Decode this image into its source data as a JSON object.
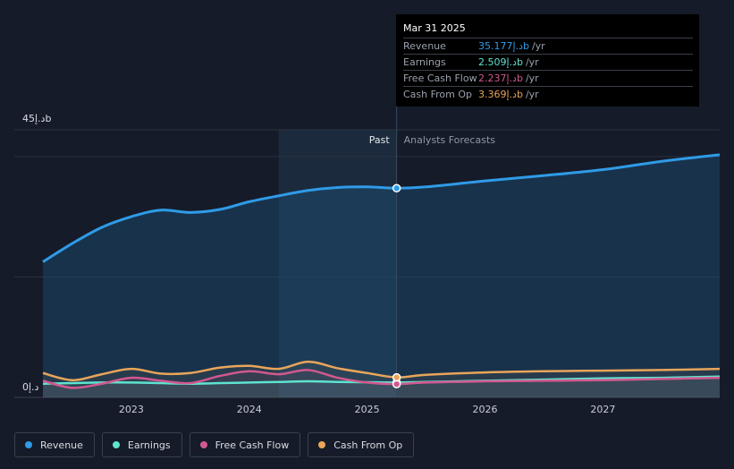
{
  "tooltip": {
    "date": "Mar 31 2025",
    "rows": [
      {
        "label": "Revenue",
        "value": "35.177د.إb",
        "unit": "/yr",
        "color": "#2f9be7"
      },
      {
        "label": "Earnings",
        "value": "2.509د.إb",
        "unit": "/yr",
        "color": "#5ee3d0"
      },
      {
        "label": "Free Cash Flow",
        "value": "2.237د.إb",
        "unit": "/yr",
        "color": "#d2588f"
      },
      {
        "label": "Cash From Op",
        "value": "3.369د.إb",
        "unit": "/yr",
        "color": "#e8a55a"
      }
    ]
  },
  "legend": [
    {
      "label": "Revenue",
      "color": "#2f9be7",
      "icon": "revenue-dot"
    },
    {
      "label": "Earnings",
      "color": "#5ee3d0",
      "icon": "earnings-dot"
    },
    {
      "label": "Free Cash Flow",
      "color": "#d2588f",
      "icon": "fcf-dot"
    },
    {
      "label": "Cash From Op",
      "color": "#e8a55a",
      "icon": "cfo-dot"
    }
  ],
  "chart_data": {
    "type": "line",
    "y_top_label": "45د.إb",
    "y_bottom_label": "0د.إ",
    "ylim": [
      0,
      45
    ],
    "xlim": [
      2022.25,
      2027.99
    ],
    "x_ticks": [
      "2023",
      "2024",
      "2025",
      "2026",
      "2027"
    ],
    "x_tick_values": [
      2023,
      2024,
      2025,
      2026,
      2027
    ],
    "past_label": "Past",
    "forecast_label": "Analysts Forecasts",
    "divider_x": 2025.25,
    "highlight_start_x": 2024.25,
    "series": [
      {
        "name": "Revenue",
        "color": "#2f9be7",
        "area": true,
        "points": [
          [
            2022.25,
            22.8
          ],
          [
            2022.5,
            25.9
          ],
          [
            2022.75,
            28.6
          ],
          [
            2023.0,
            30.4
          ],
          [
            2023.25,
            31.5
          ],
          [
            2023.5,
            31.1
          ],
          [
            2023.75,
            31.6
          ],
          [
            2024.0,
            32.9
          ],
          [
            2024.25,
            33.9
          ],
          [
            2024.5,
            34.8
          ],
          [
            2024.75,
            35.3
          ],
          [
            2025.0,
            35.4
          ],
          [
            2025.25,
            35.177
          ],
          [
            2025.5,
            35.4
          ],
          [
            2026.0,
            36.4
          ],
          [
            2026.5,
            37.3
          ],
          [
            2027.0,
            38.3
          ],
          [
            2027.5,
            39.7
          ],
          [
            2027.99,
            40.8
          ]
        ]
      },
      {
        "name": "Earnings",
        "color": "#5ee3d0",
        "area": false,
        "points": [
          [
            2022.25,
            2.3
          ],
          [
            2022.5,
            2.4
          ],
          [
            2022.75,
            2.5
          ],
          [
            2023.0,
            2.5
          ],
          [
            2023.25,
            2.4
          ],
          [
            2023.5,
            2.3
          ],
          [
            2023.75,
            2.4
          ],
          [
            2024.0,
            2.5
          ],
          [
            2024.25,
            2.6
          ],
          [
            2024.5,
            2.7
          ],
          [
            2024.75,
            2.6
          ],
          [
            2025.0,
            2.55
          ],
          [
            2025.25,
            2.509
          ],
          [
            2025.5,
            2.6
          ],
          [
            2026.0,
            2.8
          ],
          [
            2026.5,
            3.0
          ],
          [
            2027.0,
            3.2
          ],
          [
            2027.5,
            3.3
          ],
          [
            2027.99,
            3.5
          ]
        ]
      },
      {
        "name": "Free Cash Flow",
        "color": "#d2588f",
        "area": false,
        "points": [
          [
            2022.25,
            2.8
          ],
          [
            2022.5,
            1.6
          ],
          [
            2022.75,
            2.3
          ],
          [
            2023.0,
            3.3
          ],
          [
            2023.25,
            2.8
          ],
          [
            2023.5,
            2.4
          ],
          [
            2023.75,
            3.6
          ],
          [
            2024.0,
            4.4
          ],
          [
            2024.25,
            3.9
          ],
          [
            2024.5,
            4.6
          ],
          [
            2024.75,
            3.3
          ],
          [
            2025.0,
            2.5
          ],
          [
            2025.25,
            2.237
          ],
          [
            2025.5,
            2.5
          ],
          [
            2026.0,
            2.7
          ],
          [
            2026.5,
            2.8
          ],
          [
            2027.0,
            2.9
          ],
          [
            2027.5,
            3.1
          ],
          [
            2027.99,
            3.3
          ]
        ]
      },
      {
        "name": "Cash From Op",
        "color": "#e8a55a",
        "area": false,
        "points": [
          [
            2022.25,
            4.1
          ],
          [
            2022.5,
            2.9
          ],
          [
            2022.75,
            3.9
          ],
          [
            2023.0,
            4.8
          ],
          [
            2023.25,
            4.0
          ],
          [
            2023.5,
            4.1
          ],
          [
            2023.75,
            5.0
          ],
          [
            2024.0,
            5.3
          ],
          [
            2024.25,
            4.8
          ],
          [
            2024.5,
            6.0
          ],
          [
            2024.75,
            4.9
          ],
          [
            2025.0,
            4.1
          ],
          [
            2025.25,
            3.369
          ],
          [
            2025.5,
            3.8
          ],
          [
            2026.0,
            4.2
          ],
          [
            2026.5,
            4.4
          ],
          [
            2027.0,
            4.5
          ],
          [
            2027.5,
            4.6
          ],
          [
            2027.99,
            4.8
          ]
        ]
      }
    ]
  }
}
